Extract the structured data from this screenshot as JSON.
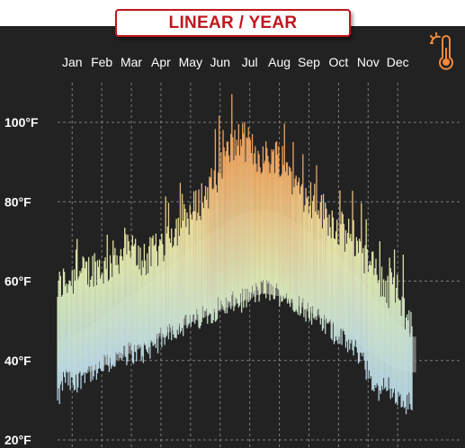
{
  "title_badge": "LINEAR / YEAR",
  "icon": "thermometer-sun-icon",
  "colors": {
    "background": "#222222",
    "badge_border": "#c0161b",
    "hot": "#f6a55c",
    "warm": "#f3eaa0",
    "mild": "#dff0b4",
    "cool": "#b8d8e8",
    "normal_band": "#7d7d7d"
  },
  "chart_data": {
    "type": "bar",
    "x_ticks": [
      "Jan",
      "Feb",
      "Mar",
      "Apr",
      "May",
      "Jun",
      "Jul",
      "Aug",
      "Sep",
      "Oct",
      "Nov",
      "Dec"
    ],
    "y_ticks": [
      "100°F",
      "80°F",
      "60°F",
      "40°F",
      "20°F"
    ],
    "y_tick_values": [
      100,
      80,
      60,
      40,
      20
    ],
    "ylim": [
      20,
      110
    ],
    "grid": true,
    "x_unit": "day_of_year",
    "series": [
      {
        "role": "daily_range_bars",
        "anchor_points": [
          [
            1,
            29,
            58
          ],
          [
            8,
            36,
            60
          ],
          [
            18,
            33,
            61
          ],
          [
            31,
            38,
            62
          ],
          [
            40,
            36,
            64
          ],
          [
            50,
            39,
            63
          ],
          [
            60,
            40,
            66
          ],
          [
            75,
            42,
            68
          ],
          [
            90,
            42,
            65
          ],
          [
            105,
            45,
            68
          ],
          [
            120,
            48,
            73
          ],
          [
            135,
            49,
            76
          ],
          [
            150,
            51,
            81
          ],
          [
            165,
            53,
            86
          ],
          [
            175,
            54,
            92
          ],
          [
            190,
            55,
            96
          ],
          [
            205,
            57,
            92
          ],
          [
            215,
            58,
            91
          ],
          [
            225,
            57,
            92
          ],
          [
            235,
            56,
            90
          ],
          [
            245,
            55,
            85
          ],
          [
            255,
            53,
            82
          ],
          [
            265,
            51,
            80
          ],
          [
            280,
            48,
            76
          ],
          [
            295,
            45,
            72
          ],
          [
            310,
            42,
            70
          ],
          [
            320,
            37,
            64
          ],
          [
            330,
            32,
            62
          ],
          [
            340,
            34,
            58
          ],
          [
            350,
            30,
            57
          ],
          [
            358,
            28,
            52
          ],
          [
            365,
            30,
            48
          ]
        ]
      },
      {
        "role": "normal_band",
        "anchor_points": [
          [
            1,
            37,
            45
          ],
          [
            30,
            37,
            48
          ],
          [
            60,
            40,
            54
          ],
          [
            90,
            44,
            59
          ],
          [
            120,
            48,
            65
          ],
          [
            150,
            51,
            71
          ],
          [
            180,
            54,
            76
          ],
          [
            200,
            56,
            78
          ],
          [
            210,
            57,
            78
          ],
          [
            230,
            56,
            77
          ],
          [
            260,
            52,
            72
          ],
          [
            290,
            48,
            66
          ],
          [
            320,
            42,
            57
          ],
          [
            345,
            38,
            50
          ],
          [
            365,
            37,
            46
          ]
        ]
      }
    ]
  }
}
